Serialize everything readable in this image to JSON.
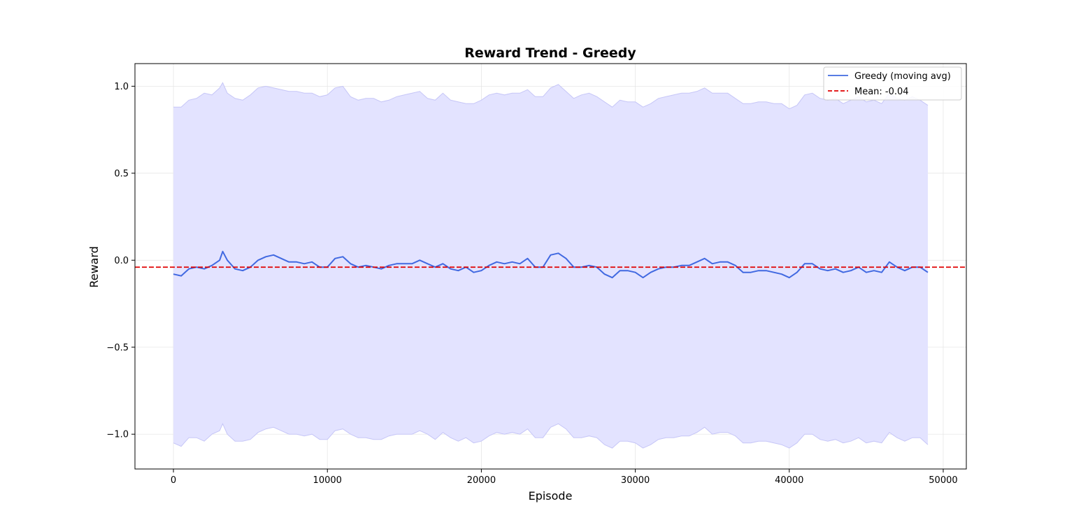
{
  "chart_data": {
    "type": "line",
    "title": "Reward Trend - Greedy",
    "xlabel": "Episode",
    "ylabel": "Reward",
    "xlim": [
      -2500,
      51500
    ],
    "ylim": [
      -1.2,
      1.13
    ],
    "x_ticks": [
      0,
      10000,
      20000,
      30000,
      40000,
      50000
    ],
    "y_ticks": [
      -1.0,
      -0.5,
      0.0,
      0.5,
      1.0
    ],
    "x_tick_labels": [
      "0",
      "10000",
      "20000",
      "30000",
      "40000",
      "50000"
    ],
    "y_tick_labels": [
      "−1.0",
      "−0.5",
      "0.0",
      "0.5",
      "1.0"
    ],
    "grid": true,
    "legend_position": "top-right",
    "colors": {
      "line": "#4169e1",
      "band": "#e3e3ff",
      "band_edge": "#c6c6f7",
      "mean": "#e00000"
    },
    "series": [
      {
        "name": "Greedy (moving avg)",
        "x": [
          0,
          500,
          1000,
          1500,
          2000,
          2500,
          3000,
          3200,
          3500,
          4000,
          4500,
          5000,
          5500,
          6000,
          6500,
          7000,
          7500,
          8000,
          8500,
          9000,
          9500,
          10000,
          10500,
          11000,
          11500,
          12000,
          12500,
          13000,
          13500,
          14000,
          14500,
          15000,
          15500,
          16000,
          16500,
          17000,
          17500,
          18000,
          18500,
          19000,
          19500,
          20000,
          20500,
          21000,
          21500,
          22000,
          22500,
          23000,
          23500,
          24000,
          24500,
          25000,
          25500,
          26000,
          26500,
          27000,
          27500,
          28000,
          28500,
          29000,
          29500,
          30000,
          30500,
          31000,
          31500,
          32000,
          32500,
          33000,
          33500,
          34000,
          34500,
          35000,
          35500,
          36000,
          36500,
          37000,
          37500,
          38000,
          38500,
          39000,
          39500,
          40000,
          40500,
          41000,
          41500,
          42000,
          42500,
          43000,
          43500,
          44000,
          44500,
          45000,
          45500,
          46000,
          46500,
          47000,
          47500,
          48000,
          48500,
          49000
        ],
        "y": [
          -0.08,
          -0.09,
          -0.05,
          -0.04,
          -0.05,
          -0.03,
          0.0,
          0.05,
          0.0,
          -0.05,
          -0.06,
          -0.04,
          0.0,
          0.02,
          0.03,
          0.01,
          -0.01,
          -0.01,
          -0.02,
          -0.01,
          -0.04,
          -0.04,
          0.01,
          0.02,
          -0.02,
          -0.04,
          -0.03,
          -0.04,
          -0.05,
          -0.03,
          -0.02,
          -0.02,
          -0.02,
          0.0,
          -0.02,
          -0.04,
          -0.02,
          -0.05,
          -0.06,
          -0.04,
          -0.07,
          -0.06,
          -0.03,
          -0.01,
          -0.02,
          -0.01,
          -0.02,
          0.01,
          -0.04,
          -0.04,
          0.03,
          0.04,
          0.01,
          -0.04,
          -0.04,
          -0.03,
          -0.04,
          -0.08,
          -0.1,
          -0.06,
          -0.06,
          -0.07,
          -0.1,
          -0.07,
          -0.05,
          -0.04,
          -0.04,
          -0.03,
          -0.03,
          -0.01,
          0.01,
          -0.02,
          -0.01,
          -0.01,
          -0.03,
          -0.07,
          -0.07,
          -0.06,
          -0.06,
          -0.07,
          -0.08,
          -0.1,
          -0.07,
          -0.02,
          -0.02,
          -0.05,
          -0.06,
          -0.05,
          -0.07,
          -0.06,
          -0.04,
          -0.07,
          -0.06,
          -0.07,
          -0.01,
          -0.04,
          -0.06,
          -0.04,
          -0.04,
          -0.07
        ]
      },
      {
        "name": "Mean: -0.04",
        "value": -0.04
      }
    ],
    "band": {
      "upper": [
        0.88,
        0.88,
        0.92,
        0.93,
        0.96,
        0.95,
        0.99,
        1.02,
        0.96,
        0.93,
        0.92,
        0.95,
        0.99,
        1.0,
        0.99,
        0.98,
        0.97,
        0.97,
        0.96,
        0.96,
        0.94,
        0.95,
        0.99,
        1.0,
        0.94,
        0.92,
        0.93,
        0.93,
        0.91,
        0.92,
        0.94,
        0.95,
        0.96,
        0.97,
        0.93,
        0.92,
        0.96,
        0.92,
        0.91,
        0.9,
        0.9,
        0.92,
        0.95,
        0.96,
        0.95,
        0.96,
        0.96,
        0.98,
        0.94,
        0.94,
        0.99,
        1.01,
        0.97,
        0.93,
        0.95,
        0.96,
        0.94,
        0.91,
        0.88,
        0.92,
        0.91,
        0.91,
        0.88,
        0.9,
        0.93,
        0.94,
        0.95,
        0.96,
        0.96,
        0.97,
        0.99,
        0.96,
        0.96,
        0.96,
        0.93,
        0.9,
        0.9,
        0.91,
        0.91,
        0.9,
        0.9,
        0.87,
        0.89,
        0.95,
        0.96,
        0.93,
        0.92,
        0.93,
        0.9,
        0.92,
        0.94,
        0.91,
        0.92,
        0.9,
        0.96,
        0.93,
        0.92,
        0.94,
        0.92,
        0.89
      ],
      "lower": [
        -1.05,
        -1.07,
        -1.02,
        -1.02,
        -1.04,
        -1.0,
        -0.98,
        -0.94,
        -1.0,
        -1.04,
        -1.04,
        -1.03,
        -0.99,
        -0.97,
        -0.96,
        -0.98,
        -1.0,
        -1.0,
        -1.01,
        -1.0,
        -1.03,
        -1.03,
        -0.98,
        -0.97,
        -1.0,
        -1.02,
        -1.02,
        -1.03,
        -1.03,
        -1.01,
        -1.0,
        -1.0,
        -1.0,
        -0.98,
        -1.0,
        -1.03,
        -0.99,
        -1.02,
        -1.04,
        -1.02,
        -1.05,
        -1.04,
        -1.01,
        -0.99,
        -1.0,
        -0.99,
        -1.0,
        -0.97,
        -1.02,
        -1.02,
        -0.96,
        -0.94,
        -0.97,
        -1.02,
        -1.02,
        -1.01,
        -1.02,
        -1.06,
        -1.08,
        -1.04,
        -1.04,
        -1.05,
        -1.08,
        -1.06,
        -1.03,
        -1.02,
        -1.02,
        -1.01,
        -1.01,
        -0.99,
        -0.96,
        -1.0,
        -0.99,
        -0.99,
        -1.01,
        -1.05,
        -1.05,
        -1.04,
        -1.04,
        -1.05,
        -1.06,
        -1.08,
        -1.05,
        -1.0,
        -1.0,
        -1.03,
        -1.04,
        -1.03,
        -1.05,
        -1.04,
        -1.02,
        -1.05,
        -1.04,
        -1.05,
        -0.99,
        -1.02,
        -1.04,
        -1.02,
        -1.02,
        -1.06
      ]
    }
  }
}
